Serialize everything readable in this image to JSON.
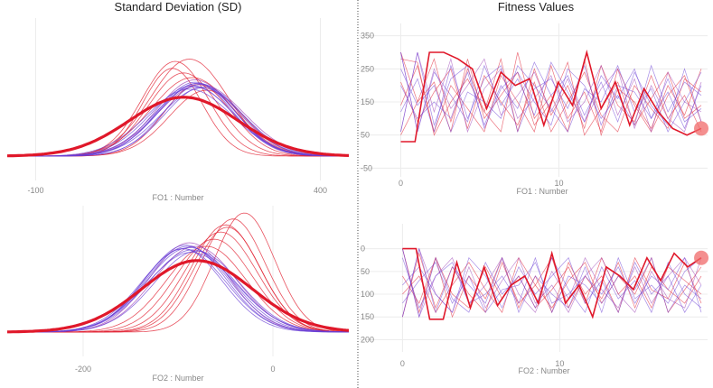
{
  "colors": {
    "blue": "#6a3fd6",
    "red": "#e0182a",
    "purple": "#9b3fb5",
    "grid": "#ececec",
    "divider": "#444444"
  },
  "chart_data": [
    {
      "id": "sd-fo1",
      "type": "line",
      "title": "Standard Deviation (SD)",
      "xlabel": "FO1 : Number",
      "xticks": [
        -100,
        400
      ],
      "xlim": [
        -150,
        450
      ],
      "ylim": [
        0,
        1.0
      ],
      "curves": [
        {
          "mean": 170,
          "sd": 68,
          "amp": 0.84,
          "color": "red"
        },
        {
          "mean": 145,
          "sd": 58,
          "amp": 0.82,
          "color": "red"
        },
        {
          "mean": 140,
          "sd": 52,
          "amp": 0.76,
          "color": "red"
        },
        {
          "mean": 160,
          "sd": 62,
          "amp": 0.72,
          "color": "red"
        },
        {
          "mean": 185,
          "sd": 60,
          "amp": 0.62,
          "color": "red"
        },
        {
          "mean": 200,
          "sd": 65,
          "amp": 0.57,
          "color": "red"
        },
        {
          "mean": 175,
          "sd": 72,
          "amp": 0.68,
          "color": "red"
        },
        {
          "mean": 190,
          "sd": 75,
          "amp": 0.62,
          "color": "purple"
        },
        {
          "mean": 180,
          "sd": 68,
          "amp": 0.66,
          "color": "purple"
        },
        {
          "mean": 186,
          "sd": 70,
          "amp": 0.63,
          "color": "blue"
        },
        {
          "mean": 175,
          "sd": 72,
          "amp": 0.61,
          "color": "blue"
        },
        {
          "mean": 195,
          "sd": 68,
          "amp": 0.6,
          "color": "blue"
        },
        {
          "mean": 180,
          "sd": 66,
          "amp": 0.64,
          "color": "blue"
        },
        {
          "mean": 170,
          "sd": 75,
          "amp": 0.58,
          "color": "blue"
        },
        {
          "mean": 188,
          "sd": 64,
          "amp": 0.62,
          "color": "blue"
        },
        {
          "mean": 178,
          "sd": 70,
          "amp": 0.6,
          "color": "blue"
        },
        {
          "mean": 192,
          "sd": 72,
          "amp": 0.59,
          "color": "blue"
        },
        {
          "mean": 183,
          "sd": 68,
          "amp": 0.63,
          "color": "blue"
        }
      ],
      "highlight": {
        "mean": 160,
        "sd": 95,
        "amp": 0.51,
        "color": "red"
      }
    },
    {
      "id": "sd-fo2",
      "type": "line",
      "title": "",
      "xlabel": "FO2 : Number",
      "xticks": [
        -200,
        0
      ],
      "xlim": [
        -280,
        80
      ],
      "ylim": [
        0,
        1.0
      ],
      "curves": [
        {
          "mean": -30,
          "sd": 32,
          "amp": 1.0,
          "color": "red"
        },
        {
          "mean": -42,
          "sd": 34,
          "amp": 0.95,
          "color": "red"
        },
        {
          "mean": -50,
          "sd": 36,
          "amp": 0.9,
          "color": "red"
        },
        {
          "mean": -55,
          "sd": 38,
          "amp": 0.84,
          "color": "red"
        },
        {
          "mean": -62,
          "sd": 40,
          "amp": 0.78,
          "color": "red"
        },
        {
          "mean": -70,
          "sd": 42,
          "amp": 0.72,
          "color": "red"
        },
        {
          "mean": -48,
          "sd": 35,
          "amp": 0.88,
          "color": "red"
        },
        {
          "mean": -82,
          "sd": 44,
          "amp": 0.72,
          "color": "purple"
        },
        {
          "mean": -88,
          "sd": 42,
          "amp": 0.75,
          "color": "purple"
        },
        {
          "mean": -90,
          "sd": 44,
          "amp": 0.72,
          "color": "blue"
        },
        {
          "mean": -85,
          "sd": 46,
          "amp": 0.69,
          "color": "blue"
        },
        {
          "mean": -95,
          "sd": 42,
          "amp": 0.7,
          "color": "blue"
        },
        {
          "mean": -88,
          "sd": 45,
          "amp": 0.71,
          "color": "blue"
        },
        {
          "mean": -92,
          "sd": 43,
          "amp": 0.73,
          "color": "blue"
        },
        {
          "mean": -86,
          "sd": 47,
          "amp": 0.67,
          "color": "blue"
        },
        {
          "mean": -94,
          "sd": 44,
          "amp": 0.7,
          "color": "blue"
        },
        {
          "mean": -80,
          "sd": 45,
          "amp": 0.68,
          "color": "blue"
        }
      ],
      "highlight": {
        "mean": -80,
        "sd": 58,
        "amp": 0.6,
        "color": "red"
      }
    },
    {
      "id": "fit-fo1",
      "type": "line",
      "title": "Fitness Values",
      "xlabel": "FO1 : Number",
      "xticks": [
        0,
        10
      ],
      "yticks": [
        350,
        250,
        150,
        50,
        -50
      ],
      "xlim": [
        -1,
        19.4
      ],
      "ylim": [
        -60,
        360
      ],
      "series": [
        {
          "color": "red",
          "values": [
            300,
            150,
            280,
            90,
            250,
            120,
            60,
            300,
            100,
            170,
            60,
            280,
            50,
            190,
            150,
            70,
            200,
            110,
            250
          ]
        },
        {
          "color": "red",
          "values": [
            280,
            270,
            50,
            150,
            220,
            120,
            280,
            60,
            250,
            110,
            200,
            70,
            260,
            140,
            90,
            230,
            100,
            170,
            60
          ]
        },
        {
          "color": "red",
          "values": [
            50,
            150,
            210,
            60,
            280,
            100,
            170,
            240,
            80,
            150,
            270,
            50,
            130,
            210,
            80,
            160,
            240,
            100,
            140
          ]
        },
        {
          "color": "red",
          "values": [
            210,
            90,
            180,
            250,
            70,
            230,
            150,
            80,
            210,
            60,
            150,
            240,
            110,
            60,
            200,
            130,
            70,
            220,
            180
          ]
        },
        {
          "color": "red",
          "values": [
            140,
            260,
            60,
            200,
            130,
            60,
            230,
            150,
            60,
            260,
            100,
            180,
            60,
            250,
            140,
            60,
            170,
            230,
            90
          ]
        },
        {
          "color": "purple",
          "values": [
            300,
            60,
            250,
            130,
            200,
            280,
            110,
            170,
            240,
            120,
            220,
            90,
            190,
            250,
            70,
            200,
            100,
            60,
            210
          ]
        },
        {
          "color": "purple",
          "values": [
            60,
            300,
            120,
            280,
            60,
            190,
            250,
            100,
            160,
            230,
            90,
            150,
            260,
            110,
            220,
            60,
            240,
            150,
            120
          ]
        },
        {
          "color": "blue",
          "values": [
            300,
            60,
            240,
            170,
            90,
            260,
            140,
            220,
            110,
            270,
            180,
            90,
            230,
            160,
            250,
            100,
            180,
            70,
            200
          ]
        },
        {
          "color": "blue",
          "values": [
            60,
            300,
            80,
            220,
            260,
            70,
            190,
            240,
            150,
            80,
            250,
            200,
            100,
            170,
            80,
            260,
            120,
            210,
            170
          ]
        },
        {
          "color": "blue",
          "values": [
            250,
            140,
            200,
            60,
            180,
            150,
            100,
            260,
            200,
            130,
            60,
            190,
            150,
            260,
            120,
            190,
            60,
            150,
            240
          ]
        },
        {
          "color": "blue",
          "values": [
            120,
            220,
            60,
            260,
            100,
            220,
            260,
            60,
            190,
            220,
            130,
            260,
            80,
            200,
            180,
            100,
            220,
            90,
            130
          ]
        },
        {
          "color": "blue",
          "values": [
            200,
            100,
            150,
            100,
            240,
            80,
            200,
            130,
            270,
            170,
            230,
            110,
            210,
            90,
            240,
            140,
            80,
            250,
            90
          ]
        }
      ],
      "highlight": {
        "color": "red",
        "values": [
          30,
          30,
          300,
          300,
          280,
          250,
          130,
          240,
          200,
          220,
          80,
          210,
          140,
          300,
          130,
          210,
          80,
          190,
          120,
          70,
          50,
          70
        ]
      },
      "end_marker": {
        "x": 19,
        "y": 70
      }
    },
    {
      "id": "fit-fo2",
      "type": "line",
      "title": "",
      "xlabel": "FO2 : Number",
      "xticks": [
        0,
        10
      ],
      "yticks": [
        0,
        50,
        100,
        150,
        200
      ],
      "xlim": [
        -1,
        19.4
      ],
      "ylim": [
        -35,
        215
      ],
      "inverted": true,
      "series": [
        {
          "color": "red",
          "values": [
            0,
            140,
            20,
            150,
            60,
            110,
            20,
            130,
            60,
            140,
            30,
            100,
            60,
            140,
            20,
            90,
            110,
            30,
            120
          ]
        },
        {
          "color": "red",
          "values": [
            150,
            10,
            130,
            40,
            100,
            140,
            30,
            120,
            80,
            20,
            130,
            60,
            110,
            30,
            130,
            40,
            90,
            120,
            60
          ]
        },
        {
          "color": "red",
          "values": [
            60,
            120,
            20,
            100,
            130,
            40,
            110,
            60,
            130,
            90,
            40,
            120,
            20,
            100,
            60,
            130,
            40,
            70,
            100
          ]
        },
        {
          "color": "red",
          "values": [
            100,
            60,
            140,
            80,
            30,
            90,
            140,
            20,
            80,
            130,
            70,
            30,
            120,
            60,
            100,
            20,
            140,
            90,
            40
          ]
        },
        {
          "color": "purple",
          "values": [
            0,
            150,
            60,
            20,
            120,
            80,
            20,
            100,
            140,
            50,
            110,
            20,
            90,
            130,
            40,
            120,
            60,
            20,
            80
          ]
        },
        {
          "color": "purple",
          "values": [
            150,
            0,
            100,
            140,
            40,
            130,
            70,
            20,
            120,
            80,
            140,
            60,
            20,
            100,
            140,
            50,
            110,
            130,
            20
          ]
        },
        {
          "color": "blue",
          "values": [
            0,
            150,
            20,
            110,
            140,
            30,
            100,
            60,
            130,
            20,
            90,
            140,
            40,
            110,
            70,
            140,
            30,
            100,
            130
          ]
        },
        {
          "color": "blue",
          "values": [
            150,
            0,
            140,
            40,
            80,
            120,
            20,
            140,
            60,
            100,
            130,
            40,
            140,
            20,
            110,
            80,
            120,
            50,
            20
          ]
        },
        {
          "color": "blue",
          "values": [
            80,
            40,
            100,
            140,
            20,
            60,
            130,
            40,
            100,
            60,
            20,
            120,
            70,
            140,
            30,
            100,
            60,
            140,
            80
          ]
        },
        {
          "color": "blue",
          "values": [
            20,
            130,
            60,
            30,
            120,
            100,
            60,
            120,
            20,
            140,
            60,
            80,
            120,
            60,
            90,
            20,
            140,
            80,
            110
          ]
        },
        {
          "color": "blue",
          "values": [
            120,
            70,
            30,
            120,
            60,
            140,
            90,
            80,
            30,
            120,
            100,
            60,
            100,
            40,
            120,
            60,
            90,
            20,
            140
          ]
        }
      ],
      "highlight": {
        "color": "red",
        "values": [
          0,
          0,
          155,
          155,
          30,
          130,
          40,
          125,
          80,
          60,
          120,
          10,
          120,
          80,
          150,
          40,
          60,
          90,
          20,
          70,
          10,
          40,
          20
        ]
      },
      "end_marker": {
        "x": 19,
        "y": 20
      }
    }
  ]
}
